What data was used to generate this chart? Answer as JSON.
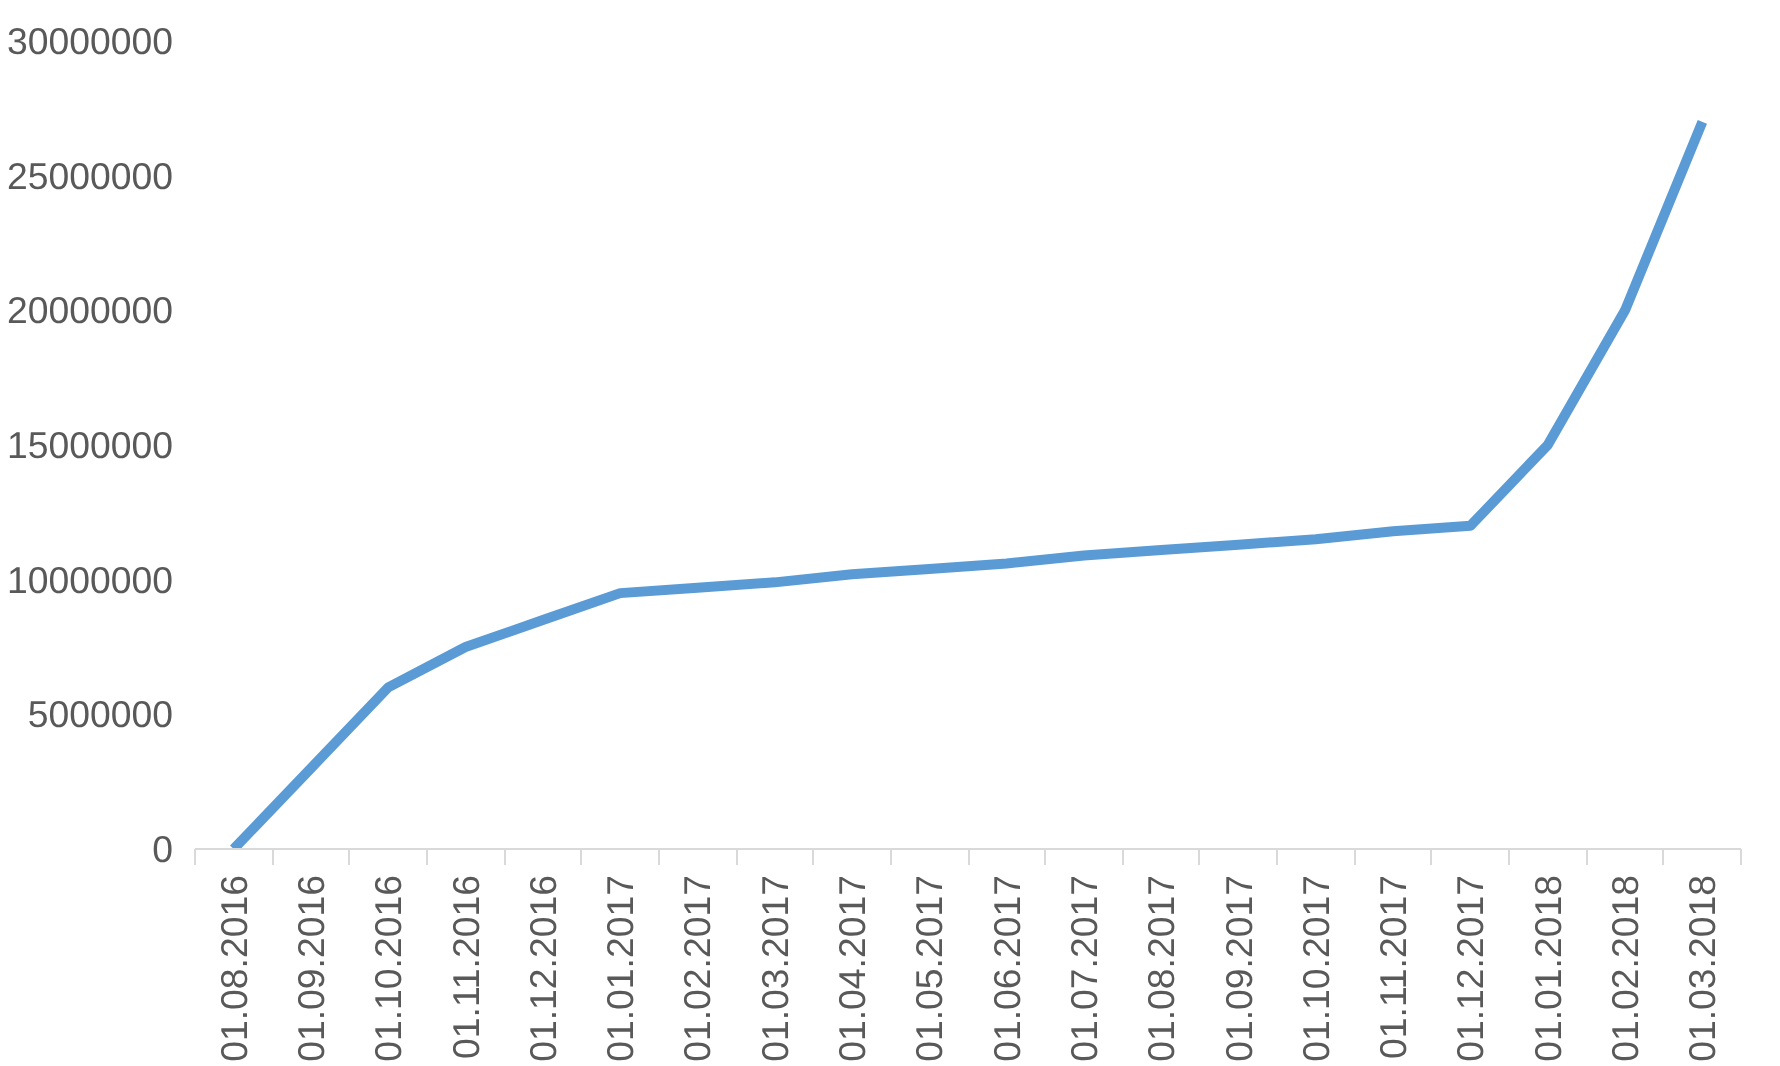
{
  "chart_data": {
    "type": "line",
    "categories": [
      "01.08.2016",
      "01.09.2016",
      "01.10.2016",
      "01.11.2016",
      "01.12.2016",
      "01.01.2017",
      "01.02.2017",
      "01.03.2017",
      "01.04.2017",
      "01.05.2017",
      "01.06.2017",
      "01.07.2017",
      "01.08.2017",
      "01.09.2017",
      "01.10.2017",
      "01.11.2017",
      "01.12.2017",
      "01.01.2018",
      "01.02.2018",
      "01.03.2018"
    ],
    "series": [
      {
        "color": "#5b9bd5",
        "values": [
          0,
          3000000,
          6000000,
          7500000,
          8500000,
          9500000,
          9700000,
          9900000,
          10200000,
          10400000,
          10600000,
          10900000,
          11100000,
          11300000,
          11500000,
          11800000,
          12000000,
          15000000,
          20000000,
          27000000
        ]
      }
    ],
    "ylim": [
      0,
      30000000
    ],
    "yticks": [
      0,
      5000000,
      10000000,
      15000000,
      20000000,
      25000000,
      30000000
    ],
    "grid": false,
    "marker": "none",
    "line_style": "solid"
  }
}
